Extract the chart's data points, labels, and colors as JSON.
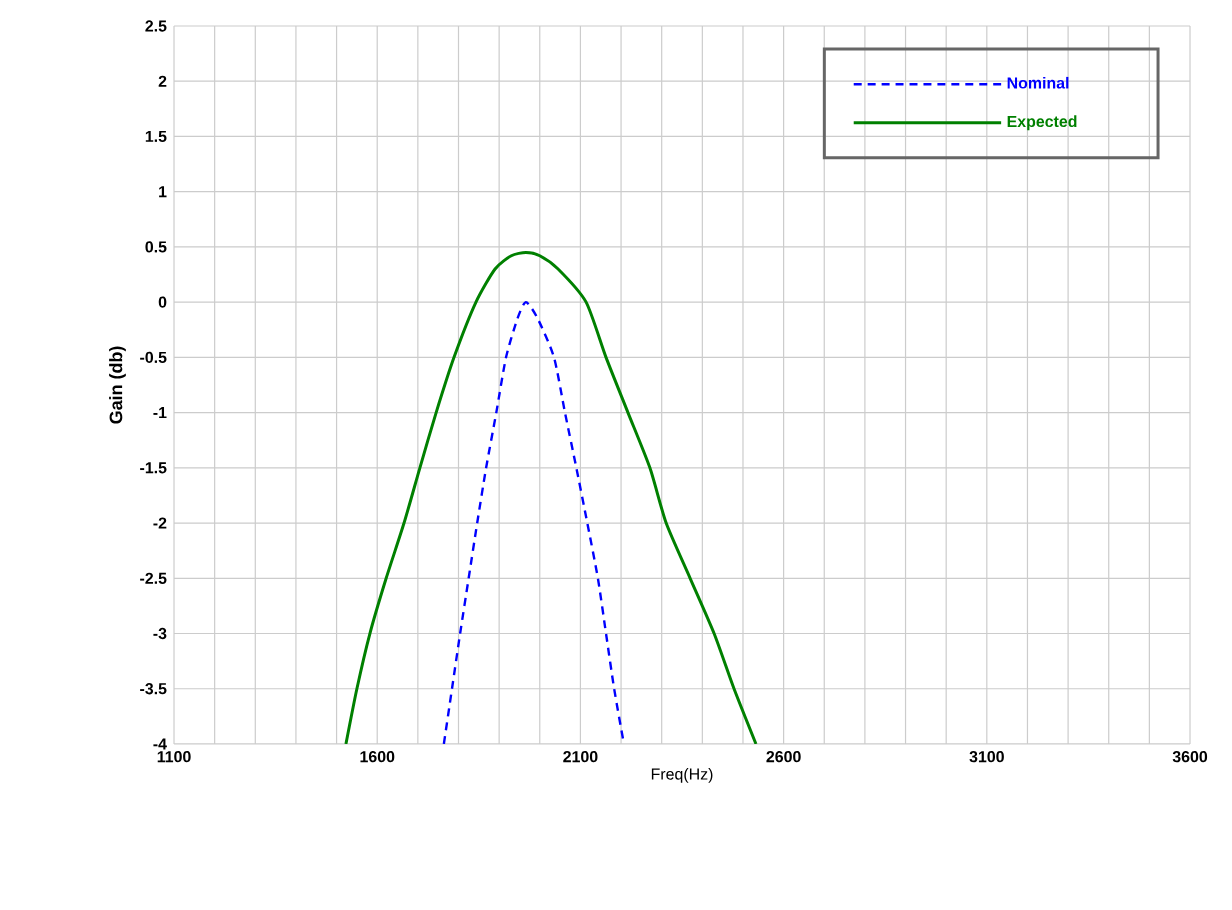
{
  "chart_data": {
    "type": "line",
    "xlabel": "Freq(Hz)",
    "ylabel": "Gain (db)",
    "xlim": [
      1100,
      3600
    ],
    "xticks": [
      1100,
      1600,
      2100,
      2600,
      3100,
      3600
    ],
    "ylim": [
      -4,
      2.5
    ],
    "yticks": [
      -4,
      -3.5,
      -3,
      -2.5,
      -2,
      -1.5,
      -1,
      -0.5,
      0,
      0.5,
      1,
      1.5,
      2,
      2.5
    ],
    "grid": true,
    "legend": "top right",
    "marker": "none",
    "series": [
      {
        "name": "Nominal",
        "color": "#0000ff",
        "line_style": "dashed",
        "x": [
          1764,
          1784,
          1804,
          1825,
          1846,
          1868,
          1893,
          1917,
          1945,
          1966,
          1995,
          2035,
          2062,
          2090,
          2117,
          2143,
          2163,
          2183,
          2207
        ],
        "values": [
          -4,
          -3.5,
          -3,
          -2.5,
          -2,
          -1.5,
          -1,
          -0.5,
          -0.15,
          0,
          -0.15,
          -0.5,
          -1,
          -1.5,
          -2,
          -2.5,
          -3,
          -3.5,
          -4
        ]
      },
      {
        "name": "Expected",
        "color": "#008000",
        "line_style": "solid",
        "x": [
          1523,
          1550,
          1582,
          1622,
          1666,
          1705,
          1745,
          1789,
          1843,
          1890,
          1930,
          1966,
          2000,
          2045,
          2114,
          2163,
          2217,
          2271,
          2311,
          2370,
          2429,
          2478,
          2532
        ],
        "values": [
          -4,
          -3.5,
          -3,
          -2.5,
          -2,
          -1.5,
          -1,
          -0.5,
          0,
          0.3,
          0.42,
          0.45,
          0.42,
          0.3,
          0,
          -0.5,
          -1,
          -1.5,
          -2,
          -2.5,
          -3,
          -3.5,
          -4
        ]
      }
    ]
  }
}
